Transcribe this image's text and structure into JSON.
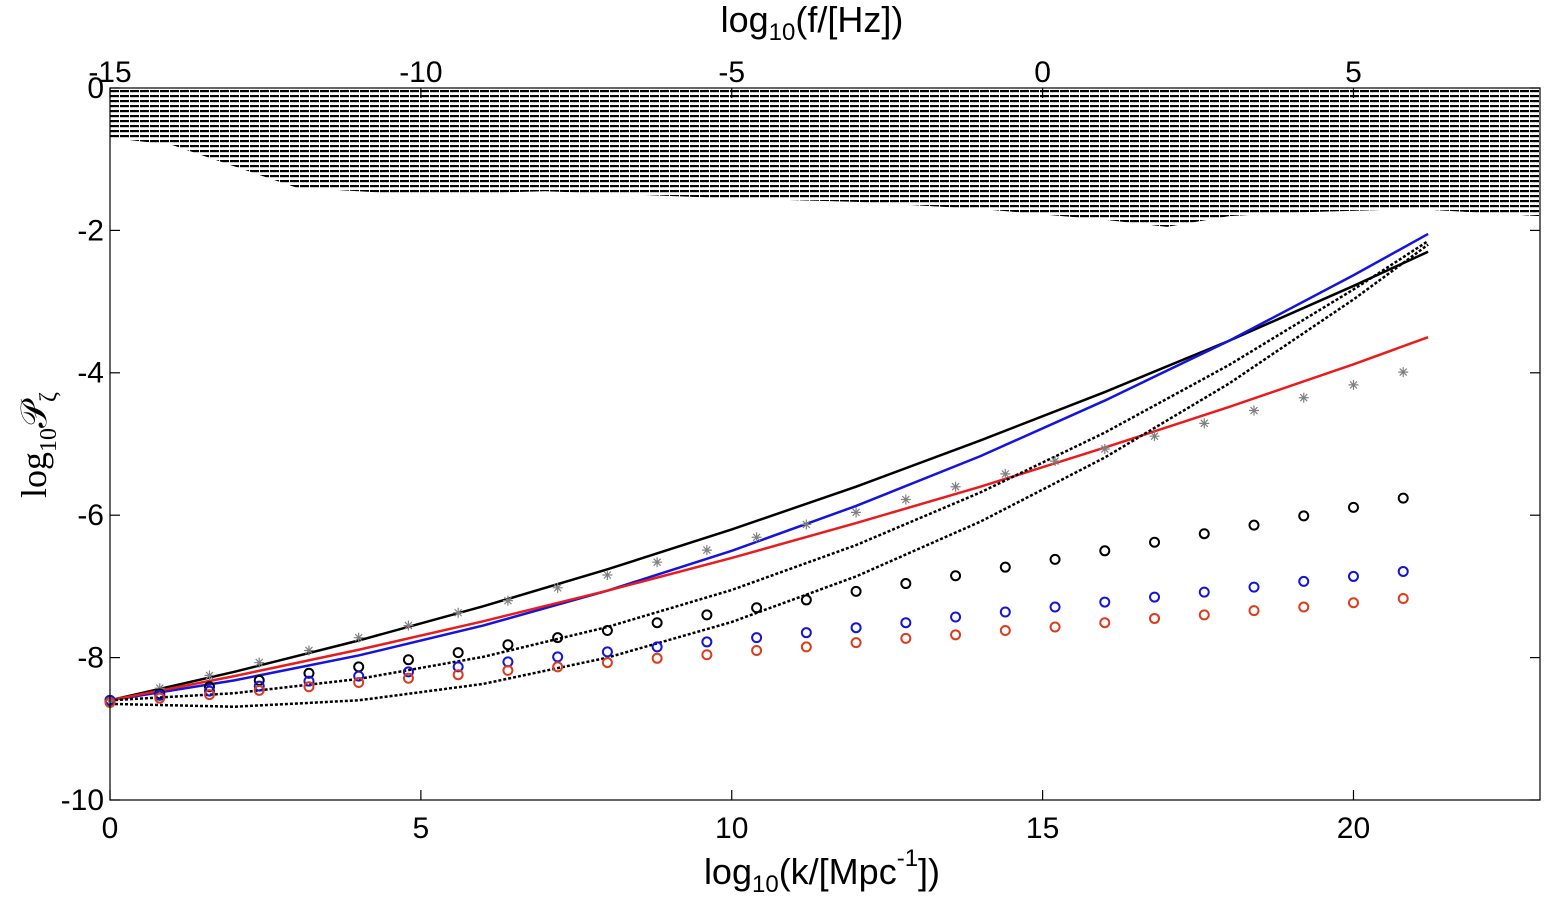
{
  "chart_data": {
    "type": "line",
    "xlabel": [
      "log",
      "10",
      "(k/[Mpc",
      "-1",
      "])"
    ],
    "x2label": [
      "log",
      "10",
      "(f/[Hz])"
    ],
    "ylabel": [
      "log",
      "10",
      "𝒫",
      "ζ"
    ],
    "xlim": [
      0,
      23
    ],
    "xticks": [
      0,
      5,
      10,
      15,
      20
    ],
    "x2lim": [
      -15,
      8
    ],
    "x2ticks": [
      -15,
      -10,
      -5,
      0,
      5
    ],
    "ylim": [
      -10,
      0
    ],
    "yticks": [
      -10,
      -8,
      -6,
      -4,
      -2,
      0
    ],
    "grid": false,
    "series": [
      {
        "color": "#000000",
        "fill": "hatch",
        "linestyle": "none",
        "marker": "none",
        "x": [
          0,
          1,
          2,
          3,
          4,
          5,
          7,
          10,
          12,
          14,
          16,
          17,
          18,
          19,
          21,
          23
        ],
        "values": [
          -0.7,
          -0.8,
          -1.1,
          -1.4,
          -1.45,
          -1.5,
          -1.45,
          -1.55,
          -1.6,
          -1.7,
          -1.85,
          -1.95,
          -1.8,
          -1.75,
          -1.7,
          -1.8
        ]
      },
      {
        "color": "#000000",
        "linestyle": "solid",
        "marker": "none",
        "x": [
          0,
          2,
          4,
          6,
          8,
          10,
          12,
          14,
          16,
          18,
          20,
          21.2
        ],
        "values": [
          -8.6,
          -8.2,
          -7.76,
          -7.28,
          -6.76,
          -6.2,
          -5.6,
          -4.95,
          -4.27,
          -3.55,
          -2.78,
          -2.3
        ]
      },
      {
        "color": "#1414dc",
        "linestyle": "solid",
        "marker": "none",
        "x": [
          0,
          2,
          4,
          6,
          8,
          10,
          12,
          14,
          16,
          18,
          20,
          21.2
        ],
        "values": [
          -8.6,
          -8.32,
          -7.97,
          -7.55,
          -7.06,
          -6.5,
          -5.87,
          -5.17,
          -4.39,
          -3.55,
          -2.63,
          -2.05
        ]
      },
      {
        "color": "#e81c1c",
        "linestyle": "solid",
        "marker": "none",
        "x": [
          0,
          2,
          4,
          6,
          8,
          10,
          12,
          14,
          16,
          18,
          20,
          21.2
        ],
        "values": [
          -8.6,
          -8.26,
          -7.89,
          -7.49,
          -7.06,
          -6.6,
          -6.11,
          -5.6,
          -5.05,
          -4.48,
          -3.88,
          -3.5
        ]
      },
      {
        "color": "#000000",
        "linestyle": "dotted",
        "marker": "none",
        "x": [
          0,
          2,
          4,
          6,
          8,
          10,
          12,
          14,
          16,
          18,
          20,
          21.2
        ],
        "values": [
          -8.6,
          -8.5,
          -8.3,
          -7.99,
          -7.57,
          -7.05,
          -6.42,
          -5.68,
          -4.84,
          -3.89,
          -2.83,
          -2.15
        ]
      },
      {
        "color": "#000000",
        "linestyle": "dotted",
        "marker": "none",
        "x": [
          0,
          2,
          4,
          6,
          8,
          10,
          12,
          14,
          16,
          18,
          20,
          21.2
        ],
        "values": [
          -8.65,
          -8.69,
          -8.6,
          -8.37,
          -8.0,
          -7.5,
          -6.86,
          -6.09,
          -5.19,
          -4.15,
          -2.97,
          -2.2
        ]
      },
      {
        "color": "#808080",
        "linestyle": "none",
        "marker": "asterisk",
        "x": [
          0,
          0.8,
          1.6,
          2.4,
          3.2,
          4,
          4.8,
          5.6,
          6.4,
          7.2,
          8,
          8.8,
          9.6,
          10.4,
          11.2,
          12,
          12.8,
          13.6,
          14.4,
          15.2,
          16,
          16.8,
          17.6,
          18.4,
          19.2,
          20,
          20.8
        ],
        "values": [
          -8.6,
          -8.43,
          -8.25,
          -8.07,
          -7.9,
          -7.72,
          -7.55,
          -7.37,
          -7.2,
          -7.02,
          -6.84,
          -6.66,
          -6.49,
          -6.31,
          -6.13,
          -5.96,
          -5.78,
          -5.6,
          -5.42,
          -5.24,
          -5.07,
          -4.89,
          -4.71,
          -4.53,
          -4.35,
          -4.17,
          -3.99
        ]
      },
      {
        "color": "#000000",
        "linestyle": "none",
        "marker": "circle",
        "x": [
          0,
          0.8,
          1.6,
          2.4,
          3.2,
          4,
          4.8,
          5.6,
          6.4,
          7.2,
          8,
          8.8,
          9.6,
          10.4,
          11.2,
          12,
          12.8,
          13.6,
          14.4,
          15.2,
          16,
          16.8,
          17.6,
          18.4,
          19.2,
          20,
          20.8
        ],
        "values": [
          -8.6,
          -8.51,
          -8.41,
          -8.32,
          -8.22,
          -8.13,
          -8.03,
          -7.93,
          -7.82,
          -7.72,
          -7.62,
          -7.51,
          -7.4,
          -7.3,
          -7.19,
          -7.07,
          -6.96,
          -6.85,
          -6.73,
          -6.62,
          -6.5,
          -6.38,
          -6.26,
          -6.14,
          -6.01,
          -5.89,
          -5.76
        ]
      },
      {
        "color": "#1414dc",
        "linestyle": "none",
        "marker": "circle",
        "x": [
          0,
          0.8,
          1.6,
          2.4,
          3.2,
          4,
          4.8,
          5.6,
          6.4,
          7.2,
          8,
          8.8,
          9.6,
          10.4,
          11.2,
          12,
          12.8,
          13.6,
          14.4,
          15.2,
          16,
          16.8,
          17.6,
          18.4,
          19.2,
          20,
          20.8
        ],
        "values": [
          -8.6,
          -8.53,
          -8.47,
          -8.4,
          -8.33,
          -8.26,
          -8.2,
          -8.13,
          -8.06,
          -7.99,
          -7.92,
          -7.85,
          -7.78,
          -7.72,
          -7.65,
          -7.58,
          -7.51,
          -7.43,
          -7.36,
          -7.29,
          -7.22,
          -7.15,
          -7.08,
          -7.01,
          -6.93,
          -6.86,
          -6.79
        ]
      },
      {
        "color": "#dc3c1c",
        "linestyle": "none",
        "marker": "circle",
        "x": [
          0,
          0.8,
          1.6,
          2.4,
          3.2,
          4,
          4.8,
          5.6,
          6.4,
          7.2,
          8,
          8.8,
          9.6,
          10.4,
          11.2,
          12,
          12.8,
          13.6,
          14.4,
          15.2,
          16,
          16.8,
          17.6,
          18.4,
          19.2,
          20,
          20.8
        ],
        "values": [
          -8.63,
          -8.57,
          -8.52,
          -8.46,
          -8.41,
          -8.35,
          -8.29,
          -8.24,
          -8.18,
          -8.13,
          -8.07,
          -8.01,
          -7.96,
          -7.9,
          -7.85,
          -7.79,
          -7.73,
          -7.68,
          -7.62,
          -7.57,
          -7.51,
          -7.45,
          -7.4,
          -7.34,
          -7.29,
          -7.23,
          -7.17
        ]
      }
    ]
  }
}
